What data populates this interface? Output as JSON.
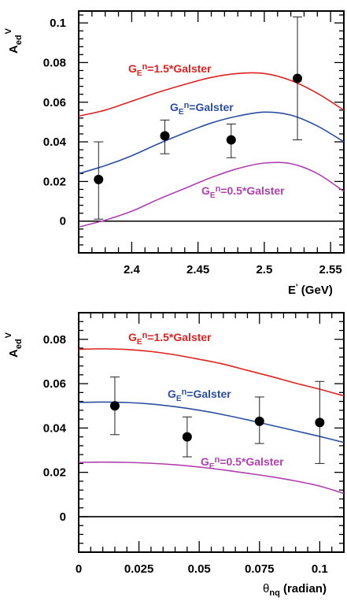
{
  "chart_data": [
    {
      "type": "line",
      "ylabel": "A_ed^V",
      "xlabel": "E' (GeV)",
      "xlim": [
        2.36,
        2.56
      ],
      "ylim": [
        -0.016,
        0.106
      ],
      "xticks": [
        2.4,
        2.45,
        2.5,
        2.55
      ],
      "xtick_labels": [
        "2.4",
        "2.45",
        "2.5",
        "2.55"
      ],
      "yticks": [
        0,
        0.02,
        0.04,
        0.06,
        0.08,
        0.1
      ],
      "ytick_labels": [
        "0",
        "0.02",
        "0.04",
        "0.06",
        "0.08",
        "0.1"
      ],
      "grid": false,
      "zero_line": true,
      "series": [
        {
          "name": "G_E^n=1.5*Galster",
          "label_prefix": "G",
          "label_sub": "E",
          "label_sup": "n",
          "label_suffix": "=1.5*Galster",
          "color": "#dd2222",
          "x": [
            2.36,
            2.38,
            2.4,
            2.42,
            2.44,
            2.46,
            2.48,
            2.5,
            2.52,
            2.54,
            2.56
          ],
          "y": [
            0.053,
            0.056,
            0.0605,
            0.065,
            0.069,
            0.0725,
            0.0745,
            0.0745,
            0.071,
            0.0645,
            0.056
          ]
        },
        {
          "name": "G_E^n=Galster",
          "label_prefix": "G",
          "label_sub": "E",
          "label_sup": "n",
          "label_suffix": "=Galster",
          "color": "#2a4fa0",
          "x": [
            2.36,
            2.38,
            2.4,
            2.42,
            2.44,
            2.46,
            2.48,
            2.5,
            2.52,
            2.54,
            2.56
          ],
          "y": [
            0.024,
            0.028,
            0.033,
            0.039,
            0.0445,
            0.0495,
            0.053,
            0.055,
            0.0535,
            0.048,
            0.04
          ]
        },
        {
          "name": "G_E^n=0.5*Galster",
          "label_prefix": "G",
          "label_sub": "E",
          "label_sup": "n",
          "label_suffix": "=0.5*Galster",
          "color": "#b040b0",
          "x": [
            2.36,
            2.38,
            2.4,
            2.42,
            2.44,
            2.46,
            2.48,
            2.5,
            2.52,
            2.54,
            2.56
          ],
          "y": [
            -0.003,
            0.0005,
            0.005,
            0.011,
            0.0165,
            0.022,
            0.0265,
            0.0293,
            0.029,
            0.024,
            0.015
          ]
        }
      ],
      "points": [
        {
          "x": 2.375,
          "y": 0.021,
          "ylow": 0.001,
          "yhigh": 0.04
        },
        {
          "x": 2.425,
          "y": 0.043,
          "ylow": 0.034,
          "yhigh": 0.051
        },
        {
          "x": 2.475,
          "y": 0.041,
          "ylow": 0.032,
          "yhigh": 0.049
        },
        {
          "x": 2.525,
          "y": 0.072,
          "ylow": 0.041,
          "yhigh": 0.103
        }
      ]
    },
    {
      "type": "line",
      "ylabel": "A_ed^V",
      "xlabel": "θ_nq (radian)",
      "xlim": [
        0,
        0.11
      ],
      "ylim": [
        -0.016,
        0.092
      ],
      "xticks": [
        0,
        0.025,
        0.05,
        0.075,
        0.1
      ],
      "xtick_labels": [
        "0",
        "0.025",
        "0.05",
        "0.075",
        "0.1"
      ],
      "yticks": [
        0,
        0.02,
        0.04,
        0.06,
        0.08
      ],
      "ytick_labels": [
        "0",
        "0.02",
        "0.04",
        "0.06",
        "0.08"
      ],
      "grid": false,
      "zero_line": true,
      "series": [
        {
          "name": "G_E^n=1.5*Galster",
          "label_prefix": "G",
          "label_sub": "E",
          "label_sup": "n",
          "label_suffix": "=1.5*Galster",
          "color": "#dd2222",
          "x": [
            0,
            0.01,
            0.02,
            0.03,
            0.04,
            0.05,
            0.06,
            0.07,
            0.08,
            0.09,
            0.1,
            0.11
          ],
          "y": [
            0.0755,
            0.0757,
            0.0754,
            0.0745,
            0.073,
            0.071,
            0.0688,
            0.066,
            0.0632,
            0.0602,
            0.0575,
            0.0545
          ]
        },
        {
          "name": "G_E^n=Galster",
          "label_prefix": "G",
          "label_sub": "E",
          "label_sup": "n",
          "label_suffix": "=Galster",
          "color": "#2a4fa0",
          "x": [
            0,
            0.01,
            0.02,
            0.03,
            0.04,
            0.05,
            0.06,
            0.07,
            0.08,
            0.09,
            0.1,
            0.11
          ],
          "y": [
            0.0515,
            0.0517,
            0.0515,
            0.0508,
            0.0496,
            0.048,
            0.046,
            0.0437,
            0.0412,
            0.0387,
            0.0362,
            0.0335
          ]
        },
        {
          "name": "G_E^n=0.5*Galster",
          "label_prefix": "G",
          "label_sub": "E",
          "label_sup": "n",
          "label_suffix": "=0.5*Galster",
          "color": "#b040b0",
          "x": [
            0,
            0.01,
            0.02,
            0.03,
            0.04,
            0.05,
            0.06,
            0.07,
            0.08,
            0.09,
            0.1,
            0.11
          ],
          "y": [
            0.0245,
            0.0246,
            0.0245,
            0.0241,
            0.0234,
            0.0224,
            0.0211,
            0.0196,
            0.018,
            0.0161,
            0.0138,
            0.0105
          ]
        }
      ],
      "points": [
        {
          "x": 0.015,
          "y": 0.05,
          "ylow": 0.037,
          "yhigh": 0.063
        },
        {
          "x": 0.045,
          "y": 0.036,
          "ylow": 0.027,
          "yhigh": 0.045
        },
        {
          "x": 0.075,
          "y": 0.043,
          "ylow": 0.033,
          "yhigh": 0.054
        },
        {
          "x": 0.1,
          "y": 0.0425,
          "ylow": 0.024,
          "yhigh": 0.061
        }
      ]
    }
  ],
  "labels": {
    "ylabel_main": "A",
    "ylabel_sub": "ed",
    "ylabel_sup": "V",
    "xlabel_top_main": "E",
    "xlabel_top_prime": "'",
    "xlabel_top_unit": " (GeV)",
    "xlabel_bottom_main": "θ",
    "xlabel_bottom_sub": "nq",
    "xlabel_bottom_unit": " (radian)"
  }
}
